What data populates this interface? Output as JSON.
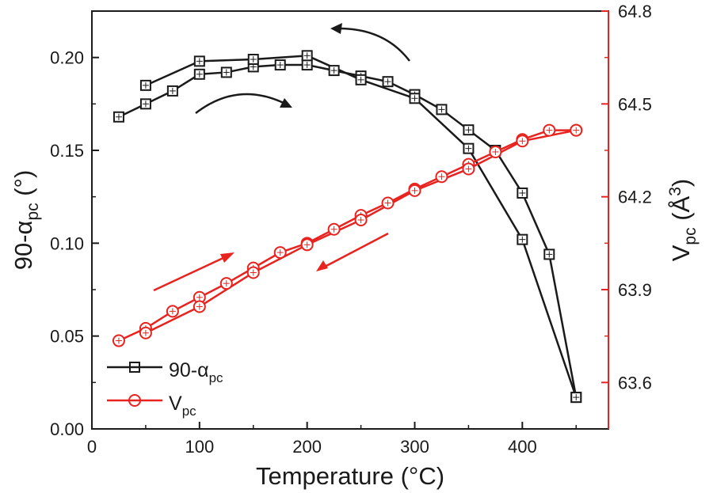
{
  "chart_data": {
    "type": "line",
    "xlabel": "Temperature (°C)",
    "ylabel_left": {
      "base": "90-α",
      "sub": "pc",
      "suffix": " (°)"
    },
    "ylabel_right": {
      "base": "V",
      "sub": "pc",
      "suffix": " (Å",
      "sup": "3",
      "close": ")"
    },
    "xlim": [
      0,
      480
    ],
    "ylim_left": [
      0.0,
      0.225
    ],
    "ylim_right": [
      63.45,
      64.8
    ],
    "x_ticks": [
      0,
      100,
      200,
      300,
      400
    ],
    "x_tick_labels": [
      "0",
      "100",
      "200",
      "300",
      "400"
    ],
    "y_left_ticks": [
      0.0,
      0.05,
      0.1,
      0.15,
      0.2
    ],
    "y_left_tick_labels": [
      "0.00",
      "0.05",
      "0.10",
      "0.15",
      "0.20"
    ],
    "y_right_ticks": [
      63.6,
      63.9,
      64.2,
      64.5,
      64.8
    ],
    "y_right_tick_labels": [
      "63.6",
      "63.9",
      "64.2",
      "64.5",
      "64.8"
    ],
    "colors": {
      "black_series": "#1a1a1a",
      "red_series": "#e8231f",
      "right_axis": "#e8231f"
    },
    "legend_position": "bottom-left",
    "series": [
      {
        "name": "90-α",
        "name_sub": "pc",
        "axis": "left",
        "marker": "square",
        "color": "#1a1a1a",
        "branches": [
          {
            "x": [
              25,
              50,
              75,
              100,
              125,
              150,
              175,
              200,
              225,
              250,
              275,
              300,
              325,
              350,
              375,
              400,
              425,
              450
            ],
            "y": [
              0.168,
              0.175,
              0.182,
              0.191,
              0.192,
              0.195,
              0.196,
              0.196,
              0.193,
              0.19,
              0.187,
              0.18,
              0.172,
              0.161,
              0.15,
              0.127,
              0.094,
              0.017
            ]
          },
          {
            "x": [
              450,
              400,
              350,
              300,
              250,
              200,
              150,
              100,
              50
            ],
            "y": [
              0.017,
              0.102,
              0.151,
              0.178,
              0.188,
              0.201,
              0.199,
              0.198,
              0.185
            ]
          }
        ]
      },
      {
        "name": "V",
        "name_sub": "pc",
        "axis": "right",
        "marker": "circle",
        "color": "#e8231f",
        "branches": [
          {
            "x": [
              25,
              50,
              75,
              100,
              125,
              150,
              175,
              200,
              225,
              250,
              275,
              300,
              325,
              350,
              375,
              400,
              425,
              450
            ],
            "y": [
              63.735,
              63.775,
              63.83,
              63.875,
              63.92,
              63.97,
              64.02,
              64.05,
              64.095,
              64.14,
              64.18,
              64.225,
              64.265,
              64.305,
              64.345,
              64.385,
              64.415,
              64.415
            ]
          },
          {
            "x": [
              450,
              400,
              350,
              300,
              250,
              200,
              150,
              100,
              50
            ],
            "y": [
              64.415,
              64.38,
              64.29,
              64.22,
              64.125,
              64.045,
              63.955,
              63.845,
              63.76
            ]
          }
        ]
      }
    ]
  }
}
